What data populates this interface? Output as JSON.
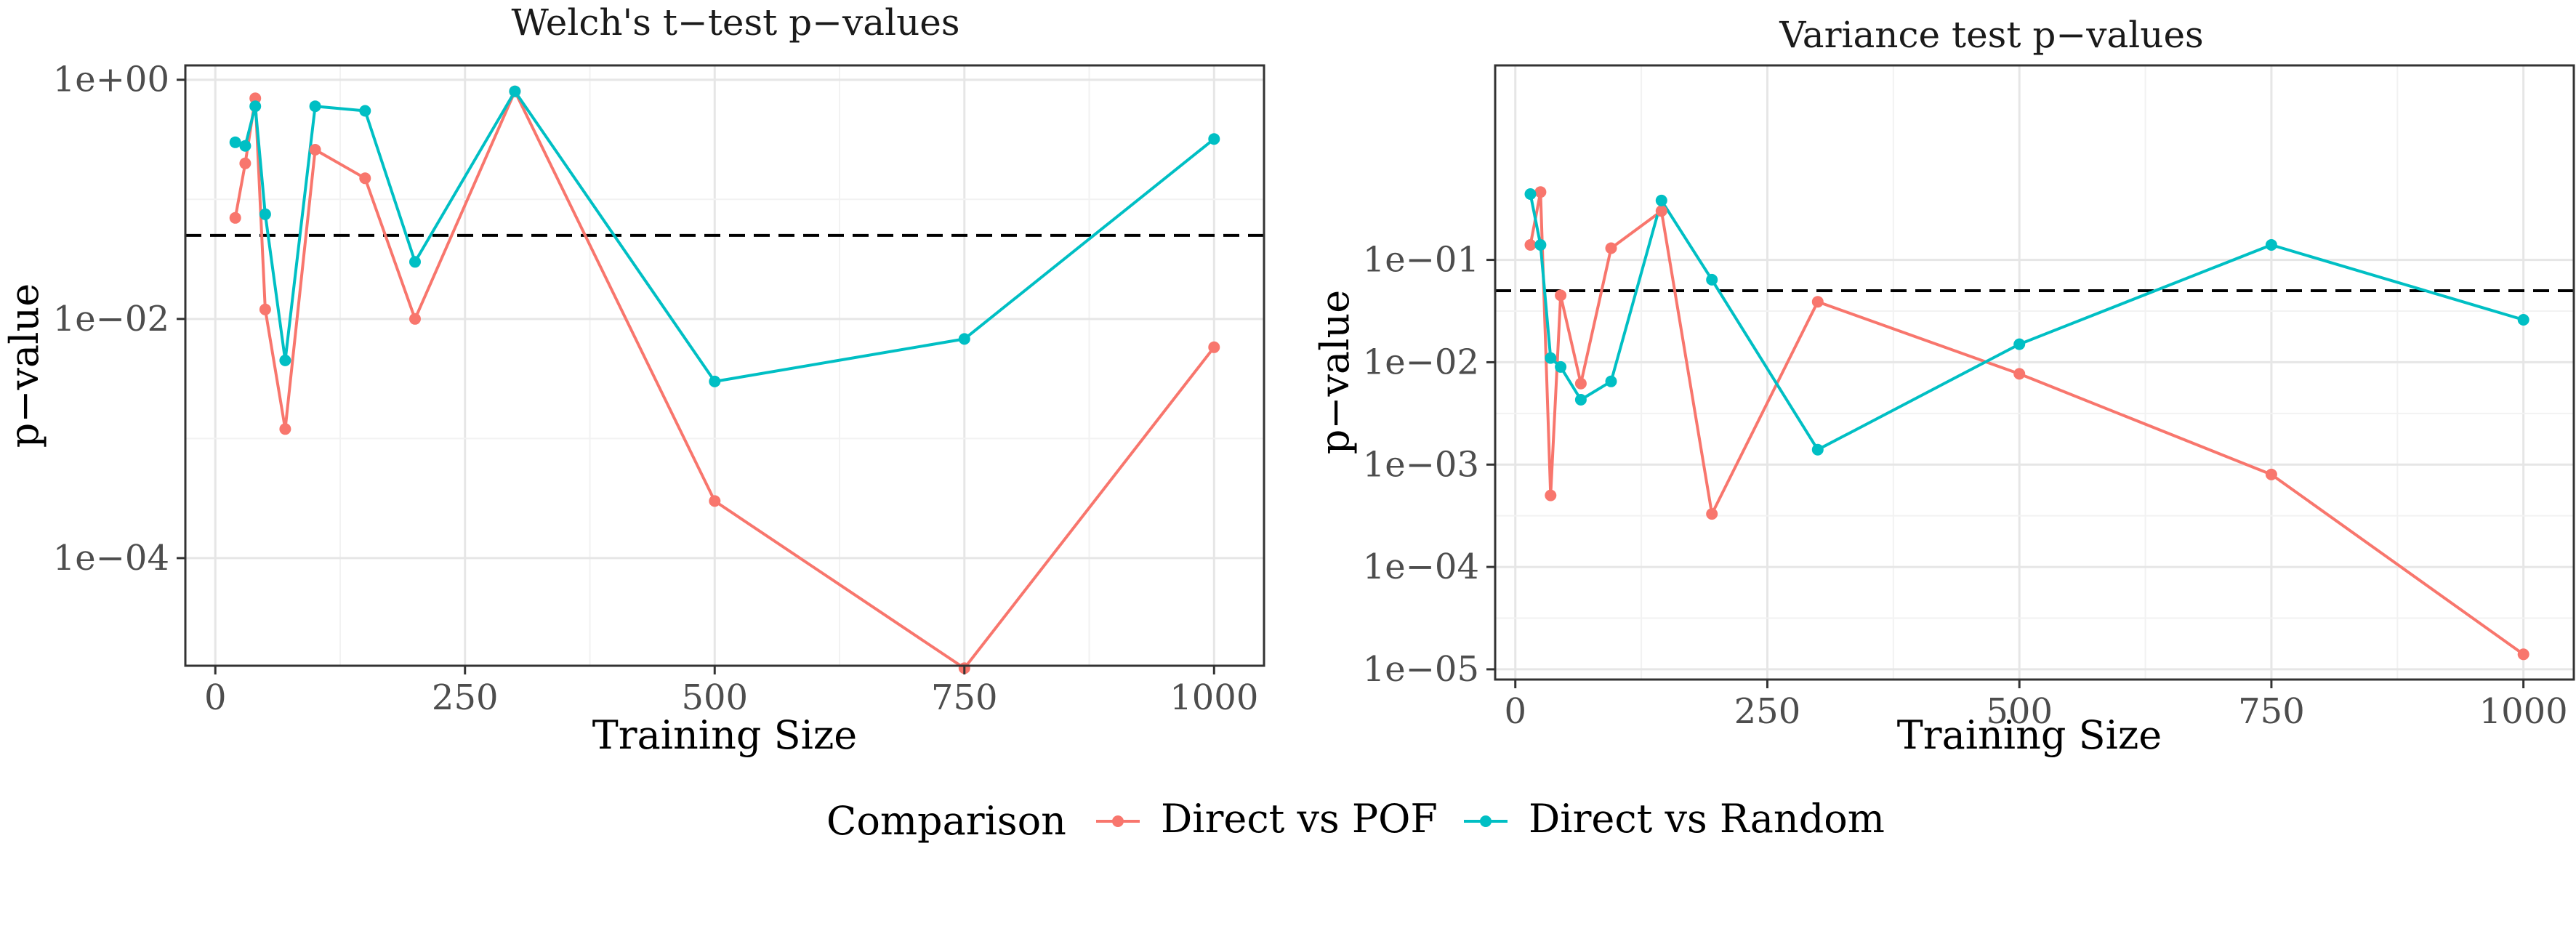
{
  "legend": {
    "title": "Comparison",
    "entries": [
      {
        "label": "Direct vs POF",
        "color": "#F8766D"
      },
      {
        "label": "Direct vs Random",
        "color": "#00BFC4"
      }
    ]
  },
  "chart_data": [
    {
      "type": "line",
      "title": "Welch's t−test p−values",
      "xlabel": "Training Size",
      "ylabel": "p−value",
      "y_scale": "log10",
      "xlim": [
        -30,
        1050
      ],
      "ylim_log10": [
        -4.9,
        0.12
      ],
      "x_ticks": [
        0,
        250,
        500,
        750,
        1000
      ],
      "x_tick_labels": [
        "0",
        "250",
        "500",
        "750",
        "1000"
      ],
      "y_ticks_log10": [
        0,
        -2,
        -4
      ],
      "y_tick_labels": [
        "1e+00",
        "1e−02",
        "1e−04"
      ],
      "reference_line": {
        "value": 0.05,
        "style": "dashed",
        "color": "#000000"
      },
      "grid": true,
      "series": [
        {
          "name": "Direct vs POF",
          "color": "#F8766D",
          "x": [
            20,
            30,
            40,
            50,
            70,
            100,
            150,
            200,
            300,
            500,
            750,
            1000
          ],
          "y": [
            0.07,
            0.2,
            0.7,
            0.012,
            0.0012,
            0.26,
            0.15,
            0.01,
            0.8,
            0.0003,
            1.2e-05,
            0.0058
          ]
        },
        {
          "name": "Direct vs Random",
          "color": "#00BFC4",
          "x": [
            20,
            30,
            40,
            50,
            70,
            100,
            150,
            200,
            300,
            500,
            750,
            1000
          ],
          "y": [
            0.3,
            0.28,
            0.6,
            0.075,
            0.0045,
            0.6,
            0.55,
            0.03,
            0.8,
            0.003,
            0.0068,
            0.32
          ]
        }
      ]
    },
    {
      "type": "line",
      "title": "Variance test p−values",
      "xlabel": "Training Size",
      "ylabel": "p−value",
      "y_scale": "log10",
      "xlim": [
        -20,
        1050
      ],
      "ylim_log10": [
        -5.1,
        0.9
      ],
      "x_ticks": [
        0,
        250,
        500,
        750,
        1000
      ],
      "x_tick_labels": [
        "0",
        "250",
        "500",
        "750",
        "1000"
      ],
      "y_ticks_log10": [
        -1,
        -2,
        -3,
        -4,
        -5
      ],
      "y_tick_labels": [
        "1e−01",
        "1e−02",
        "1e−03",
        "1e−04",
        "1e−05"
      ],
      "reference_line": {
        "value": 0.05,
        "style": "dashed",
        "color": "#000000"
      },
      "grid": true,
      "series": [
        {
          "name": "Direct vs POF",
          "color": "#F8766D",
          "x": [
            15,
            25,
            35,
            45,
            65,
            95,
            145,
            195,
            300,
            500,
            750,
            1000
          ],
          "y": [
            0.14,
            0.46,
            0.0005,
            0.045,
            0.0062,
            0.13,
            0.3,
            0.00033,
            0.039,
            0.0077,
            0.0008,
            1.4e-05
          ]
        },
        {
          "name": "Direct vs Random",
          "color": "#00BFC4",
          "x": [
            15,
            25,
            35,
            45,
            65,
            95,
            145,
            195,
            300,
            500,
            750,
            1000
          ],
          "y": [
            0.44,
            0.14,
            0.011,
            0.009,
            0.0043,
            0.0065,
            0.38,
            0.064,
            0.0014,
            0.015,
            0.14,
            0.026
          ]
        }
      ]
    }
  ]
}
